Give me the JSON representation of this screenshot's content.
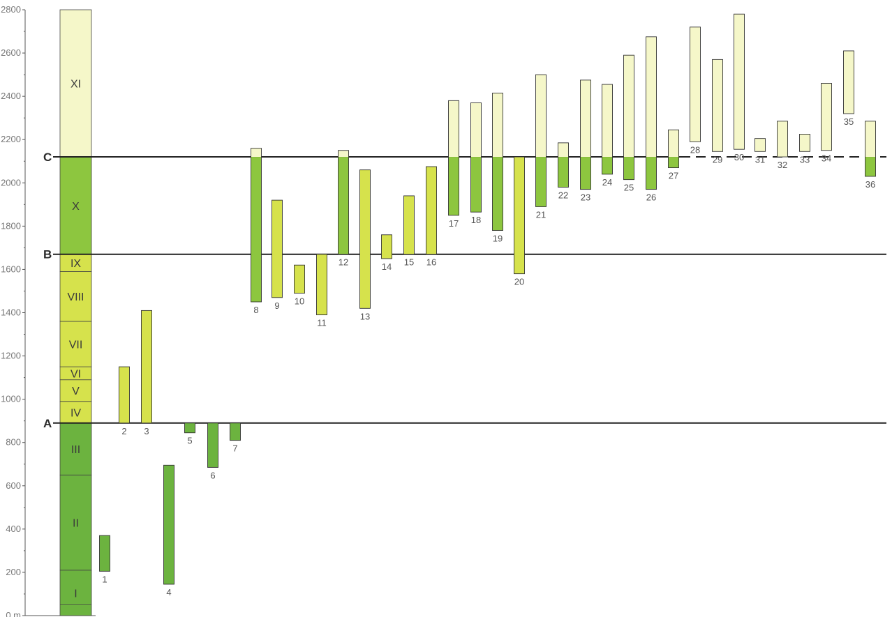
{
  "chart_data": {
    "type": "bar",
    "ylim": [
      0,
      2800
    ],
    "y_ticks": [
      0,
      200,
      400,
      600,
      800,
      1000,
      1200,
      1400,
      1600,
      1800,
      2000,
      2200,
      2400,
      2600,
      2800
    ],
    "y_tick_labels": [
      "0 m",
      "200",
      "400",
      "600",
      "800",
      "1000",
      "1200",
      "1400",
      "1600",
      "1800",
      "2000",
      "2200",
      "2400",
      "2600",
      "2800"
    ],
    "colors": {
      "light": "#f5f7c9",
      "mid": "#d6e24c",
      "dark": "#8dc63f",
      "darkest": "#6cb33f",
      "line": "#222222",
      "axis": "#555555"
    },
    "reference_lines": [
      {
        "label": "A",
        "y": 890
      },
      {
        "label": "B",
        "y": 1670
      },
      {
        "label": "C",
        "y": 2120
      }
    ],
    "zones": [
      {
        "label": "I",
        "bottom": 0,
        "top": 210
      },
      {
        "label": "II",
        "bottom": 210,
        "top": 650
      },
      {
        "label": "III",
        "bottom": 650,
        "top": 890
      },
      {
        "label": "IV",
        "bottom": 890,
        "top": 990
      },
      {
        "label": "V",
        "bottom": 990,
        "top": 1090
      },
      {
        "label": "VI",
        "bottom": 1090,
        "top": 1150
      },
      {
        "label": "VII",
        "bottom": 1150,
        "top": 1360
      },
      {
        "label": "VIII",
        "bottom": 1360,
        "top": 1590
      },
      {
        "label": "IX",
        "bottom": 1590,
        "top": 1670
      },
      {
        "label": "X",
        "bottom": 1670,
        "top": 2120
      },
      {
        "label": "XI",
        "bottom": 2120,
        "top": 2800
      }
    ],
    "series": [
      {
        "label": "1",
        "bottom": 205,
        "top": 370
      },
      {
        "label": "2",
        "bottom": 890,
        "top": 1150
      },
      {
        "label": "3",
        "bottom": 890,
        "top": 1410
      },
      {
        "label": "4",
        "bottom": 145,
        "top": 695
      },
      {
        "label": "5",
        "bottom": 845,
        "top": 890
      },
      {
        "label": "6",
        "bottom": 685,
        "top": 890
      },
      {
        "label": "7",
        "bottom": 810,
        "top": 890
      },
      {
        "label": "8",
        "bottom": 1450,
        "top": 2160
      },
      {
        "label": "9",
        "bottom": 1470,
        "top": 1920
      },
      {
        "label": "10",
        "bottom": 1490,
        "top": 1620
      },
      {
        "label": "11",
        "bottom": 1390,
        "top": 1670
      },
      {
        "label": "12",
        "bottom": 1670,
        "top": 2150
      },
      {
        "label": "13",
        "bottom": 1420,
        "top": 2060
      },
      {
        "label": "14",
        "bottom": 1650,
        "top": 1760
      },
      {
        "label": "15",
        "bottom": 1670,
        "top": 1940
      },
      {
        "label": "16",
        "bottom": 1670,
        "top": 2075
      },
      {
        "label": "17",
        "bottom": 1850,
        "top": 2380
      },
      {
        "label": "18",
        "bottom": 1865,
        "top": 2370
      },
      {
        "label": "19",
        "bottom": 1780,
        "top": 2415
      },
      {
        "label": "20",
        "bottom": 1580,
        "top": 2120
      },
      {
        "label": "21",
        "bottom": 1890,
        "top": 2500
      },
      {
        "label": "22",
        "bottom": 1980,
        "top": 2185
      },
      {
        "label": "23",
        "bottom": 1970,
        "top": 2475
      },
      {
        "label": "24",
        "bottom": 2040,
        "top": 2455
      },
      {
        "label": "25",
        "bottom": 2015,
        "top": 2590
      },
      {
        "label": "26",
        "bottom": 1970,
        "top": 2675
      },
      {
        "label": "27",
        "bottom": 2070,
        "top": 2245
      },
      {
        "label": "28",
        "bottom": 2190,
        "top": 2720
      },
      {
        "label": "29",
        "bottom": 2145,
        "top": 2570
      },
      {
        "label": "30",
        "bottom": 2155,
        "top": 2780
      },
      {
        "label": "31",
        "bottom": 2145,
        "top": 2205
      },
      {
        "label": "32",
        "bottom": 2120,
        "top": 2285
      },
      {
        "label": "33",
        "bottom": 2145,
        "top": 2225
      },
      {
        "label": "34",
        "bottom": 2150,
        "top": 2460
      },
      {
        "label": "35",
        "bottom": 2320,
        "top": 2610
      },
      {
        "label": "36",
        "bottom": 2030,
        "top": 2285
      }
    ]
  }
}
